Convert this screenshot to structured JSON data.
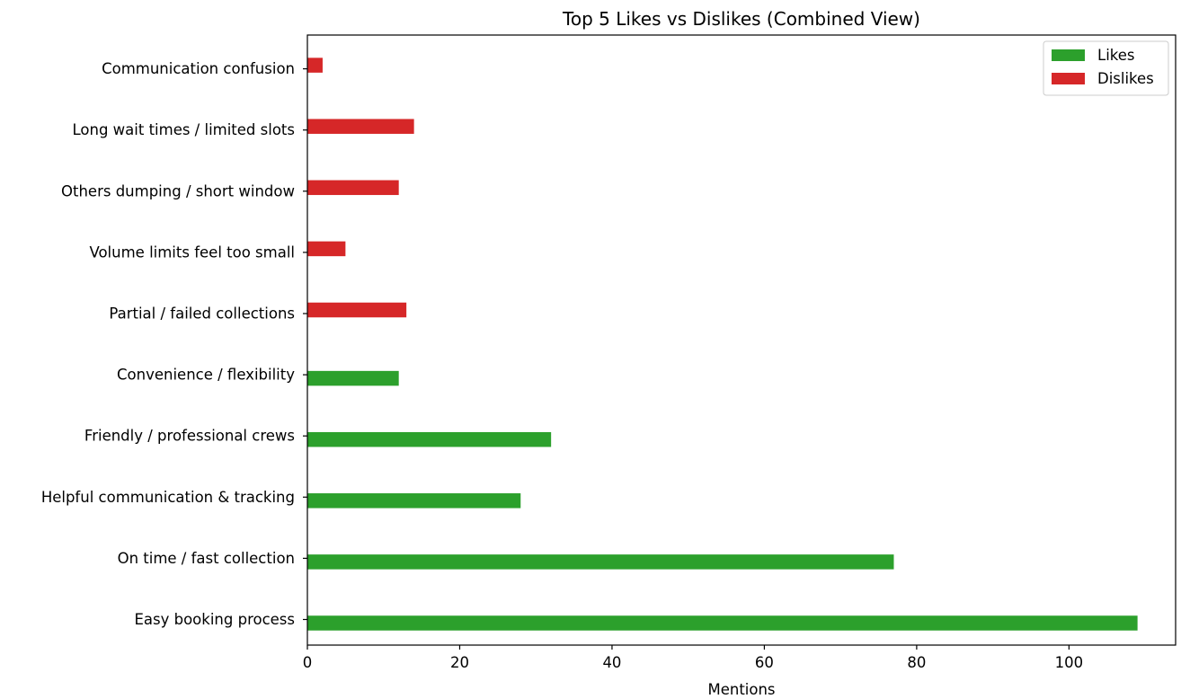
{
  "chart_data": {
    "type": "bar",
    "orientation": "horizontal",
    "title": "Top 5 Likes vs Dislikes (Combined View)",
    "xlabel": "Mentions",
    "ylabel": "",
    "xlim": [
      0,
      114
    ],
    "xticks": [
      0,
      20,
      40,
      60,
      80,
      100
    ],
    "grid": false,
    "legend_position": "top-right",
    "categories": [
      "Easy booking process",
      "On time / fast collection",
      "Helpful communication & tracking",
      "Friendly / professional crews",
      "Convenience / flexibility",
      "Partial / failed collections",
      "Volume limits feel too small",
      "Others dumping / short window",
      "Long wait times / limited slots",
      "Communication confusion"
    ],
    "series": [
      {
        "name": "Likes",
        "color": "#2ca02c",
        "values": [
          109,
          77,
          28,
          32,
          12,
          null,
          null,
          null,
          null,
          null
        ]
      },
      {
        "name": "Dislikes",
        "color": "#d62728",
        "values": [
          null,
          null,
          null,
          null,
          null,
          13,
          5,
          12,
          14,
          2
        ]
      }
    ]
  }
}
